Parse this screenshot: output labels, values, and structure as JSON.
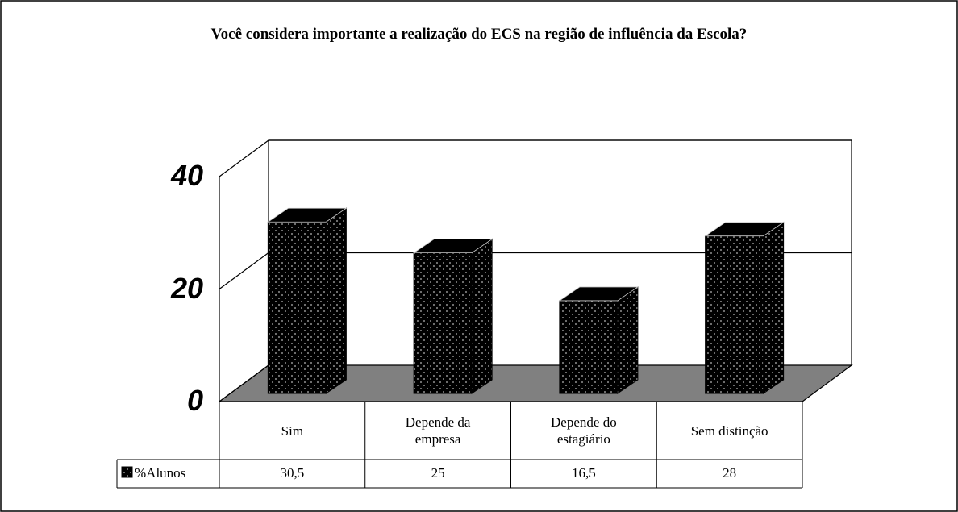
{
  "chart_data": {
    "type": "bar3d",
    "title": "Você considera importante a realização do ECS na região de influência da Escola?",
    "categories": [
      "Sim",
      "Depende da empresa",
      "Depende do estagiário",
      "Sem distinção"
    ],
    "series": [
      {
        "name": "%Alunos",
        "color": "#000000",
        "values": [
          30.5,
          25,
          16.5,
          28
        ],
        "value_labels": [
          "30,5",
          "25",
          "16,5",
          "28"
        ]
      }
    ],
    "ylim": [
      0,
      40
    ],
    "yticks": [
      0,
      20,
      40
    ],
    "grid": true,
    "legend": "bottom-left"
  }
}
